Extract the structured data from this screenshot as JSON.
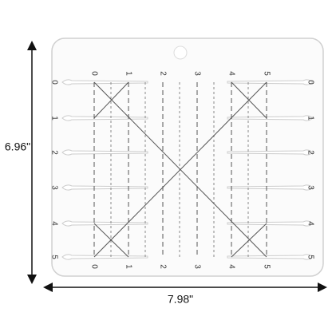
{
  "dimensions": {
    "height": "6.96\"",
    "width": "7.98\""
  },
  "scale": {
    "top": [
      "0",
      "1",
      "2",
      "3",
      "4",
      "5"
    ],
    "bottom": [
      "0",
      "1",
      "2",
      "3",
      "4",
      "5"
    ],
    "left": [
      "0",
      "1",
      "2",
      "3",
      "4",
      "5"
    ],
    "right": [
      "0",
      "1",
      "2",
      "3",
      "4",
      "5"
    ]
  }
}
